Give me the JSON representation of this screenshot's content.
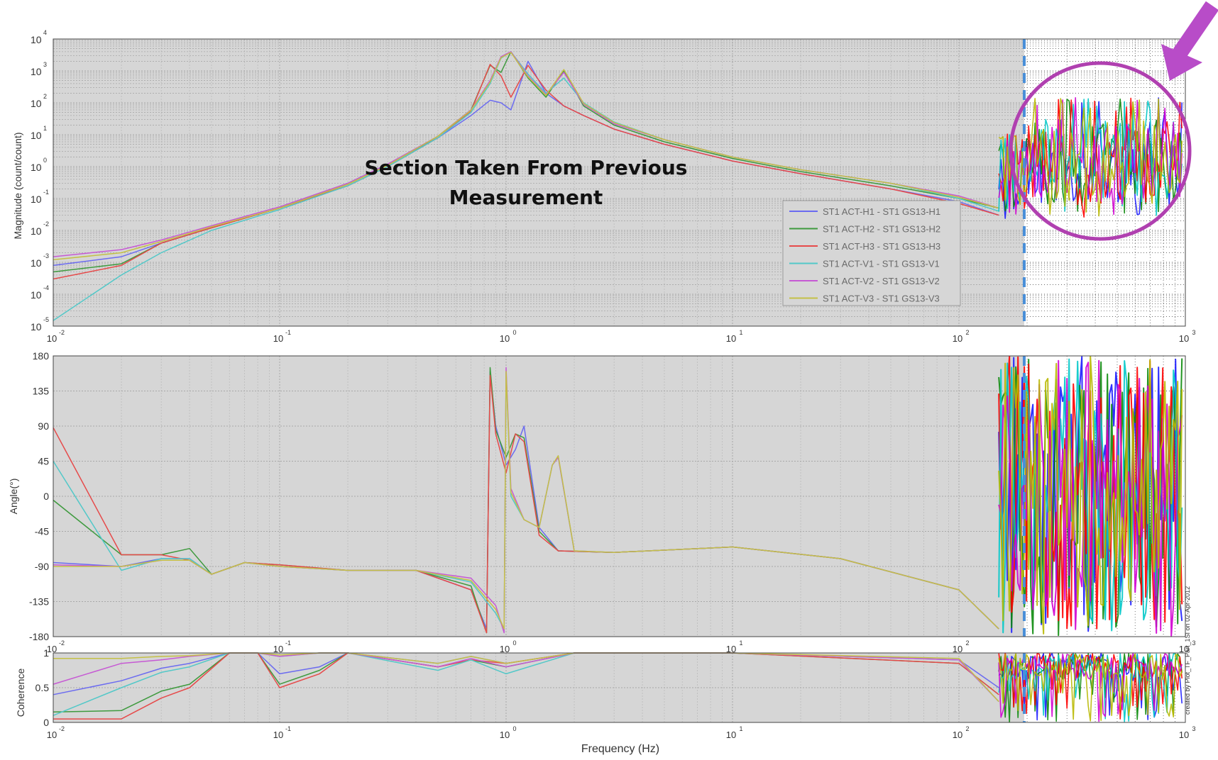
{
  "annotation": {
    "line1": "Section Taken From Previous",
    "line2": "Measurement"
  },
  "watermark": "created by Plot_TF_Part_1SI on 02-Apr-2012",
  "legend": [
    "ST1 ACT-H1 - ST1 GS13-H1",
    "ST1 ACT-H2 - ST1 GS13-H2",
    "ST1 ACT-H3 - ST1 GS13-H3",
    "ST1 ACT-V1 - ST1 GS13-V1",
    "ST1 ACT-V2 - ST1 GS13-V2",
    "ST1 ACT-V3 - ST1 GS13-V3"
  ],
  "colors": {
    "series": [
      "#6b6bf0",
      "#3e9a3e",
      "#e64a4a",
      "#52c8c8",
      "#c65ad4",
      "#c4c046"
    ],
    "series_bright": [
      "#1a1aff",
      "#0a8a0a",
      "#ff0000",
      "#00c8c8",
      "#d000d0",
      "#b8b800"
    ],
    "shaded_bg": "#d6d6d6",
    "highlight_circle": "#b040b0",
    "arrow": "#b84cc8",
    "divider": "#4a8fd8"
  },
  "chart_data": [
    {
      "type": "line",
      "panel": "magnitude",
      "ylabel": "Magnitude (count/count)",
      "xscale": "log",
      "yscale": "log",
      "xlim": [
        0.01,
        1000
      ],
      "ylim": [
        1e-05,
        10000
      ],
      "y_ticks": [
        "10^-5",
        "10^-4",
        "10^-3",
        "10^-2",
        "10^-1",
        "10^0",
        "10^1",
        "10^2",
        "10^3",
        "10^4"
      ],
      "x_ticks": [
        "10^-2",
        "10^-1",
        "10^0",
        "10^1",
        "10^2",
        "10^3"
      ],
      "grid": true,
      "legend_position": "bottom-right",
      "series": [
        {
          "name": "ST1 ACT-H1 - ST1 GS13-H1",
          "x": [
            0.01,
            0.02,
            0.03,
            0.05,
            0.1,
            0.2,
            0.3,
            0.5,
            0.7,
            0.85,
            0.95,
            1.05,
            1.25,
            1.5,
            1.8,
            2.2,
            3,
            5,
            10,
            20,
            50,
            100,
            150
          ],
          "y": [
            0.0008,
            0.0015,
            0.004,
            0.012,
            0.05,
            0.3,
            1.2,
            8,
            40,
            120,
            100,
            60,
            2000,
            200,
            80,
            40,
            15,
            5,
            1.5,
            0.6,
            0.2,
            0.08,
            0.03
          ]
        },
        {
          "name": "ST1 ACT-H2 - ST1 GS13-H2",
          "x": [
            0.01,
            0.02,
            0.03,
            0.05,
            0.1,
            0.2,
            0.3,
            0.5,
            0.7,
            0.85,
            0.95,
            1.05,
            1.25,
            1.5,
            1.8,
            2.2,
            3,
            5,
            10,
            20,
            50,
            100,
            150
          ],
          "y": [
            0.0005,
            0.0009,
            0.004,
            0.012,
            0.05,
            0.28,
            1.1,
            9,
            60,
            1500,
            900,
            4000,
            600,
            150,
            1000,
            80,
            20,
            6,
            1.8,
            0.7,
            0.25,
            0.1,
            0.05
          ]
        },
        {
          "name": "ST1 ACT-H3 - ST1 GS13-H3",
          "x": [
            0.01,
            0.02,
            0.03,
            0.05,
            0.1,
            0.2,
            0.3,
            0.5,
            0.7,
            0.85,
            0.95,
            1.05,
            1.25,
            1.5,
            1.8,
            2.2,
            3,
            5,
            10,
            20,
            50,
            100,
            150
          ],
          "y": [
            0.0003,
            0.0008,
            0.004,
            0.012,
            0.05,
            0.25,
            1.0,
            8,
            55,
            1600,
            700,
            150,
            1500,
            250,
            80,
            40,
            15,
            5,
            1.5,
            0.6,
            0.2,
            0.07,
            0.03
          ]
        },
        {
          "name": "ST1 ACT-V1 - ST1 GS13-V1",
          "x": [
            0.01,
            0.02,
            0.03,
            0.05,
            0.1,
            0.2,
            0.3,
            0.5,
            0.7,
            0.85,
            0.95,
            1.05,
            1.25,
            1.5,
            1.8,
            2.2,
            3,
            5,
            10,
            20,
            50,
            100,
            150
          ],
          "y": [
            1.5e-05,
            0.0004,
            0.002,
            0.01,
            0.045,
            0.25,
            1.0,
            8,
            50,
            400,
            2500,
            4000,
            800,
            200,
            600,
            100,
            25,
            7,
            2,
            0.8,
            0.3,
            0.1,
            0.04
          ]
        },
        {
          "name": "ST1 ACT-V2 - ST1 GS13-V2",
          "x": [
            0.01,
            0.02,
            0.03,
            0.05,
            0.1,
            0.2,
            0.3,
            0.5,
            0.7,
            0.85,
            0.95,
            1.05,
            1.25,
            1.5,
            1.8,
            2.2,
            3,
            5,
            10,
            20,
            50,
            100,
            150
          ],
          "y": [
            0.0015,
            0.0025,
            0.005,
            0.014,
            0.055,
            0.3,
            1.2,
            9,
            60,
            500,
            2800,
            4000,
            700,
            180,
            900,
            90,
            22,
            7,
            2,
            0.8,
            0.3,
            0.12,
            0.05
          ]
        },
        {
          "name": "ST1 ACT-V3 - ST1 GS13-V3",
          "x": [
            0.01,
            0.02,
            0.03,
            0.05,
            0.1,
            0.2,
            0.3,
            0.5,
            0.7,
            0.85,
            0.95,
            1.05,
            1.25,
            1.5,
            1.8,
            2.2,
            3,
            5,
            10,
            20,
            50,
            100,
            150
          ],
          "y": [
            0.0012,
            0.002,
            0.0045,
            0.013,
            0.05,
            0.28,
            1.1,
            9,
            58,
            450,
            2600,
            3800,
            650,
            170,
            1100,
            95,
            24,
            7,
            2,
            0.8,
            0.3,
            0.11,
            0.05
          ]
        }
      ]
    },
    {
      "type": "line",
      "panel": "phase",
      "ylabel": "Angle(°)",
      "xscale": "log",
      "xlim": [
        0.01,
        1000
      ],
      "ylim": [
        -180,
        180
      ],
      "y_ticks": [
        180,
        135,
        90,
        45,
        0,
        -45,
        -90,
        -135,
        -180
      ],
      "x_ticks": [
        "10^-2",
        "10^-1",
        "10^0",
        "10^1",
        "10^2",
        "10^3"
      ],
      "grid": true,
      "series": [
        {
          "name": "ST1 ACT-H1 - ST1 GS13-H1",
          "x": [
            0.01,
            0.02,
            0.03,
            0.04,
            0.05,
            0.07,
            0.1,
            0.2,
            0.4,
            0.7,
            0.82,
            0.85,
            0.9,
            1.0,
            1.1,
            1.2,
            1.4,
            1.7,
            3,
            10,
            30,
            100,
            150
          ],
          "y": [
            -85,
            -90,
            -80,
            -80,
            -100,
            -85,
            -90,
            -95,
            -95,
            -120,
            -170,
            160,
            90,
            40,
            60,
            90,
            -40,
            -70,
            -72,
            -65,
            -80,
            -120,
            -170
          ]
        },
        {
          "name": "ST1 ACT-H2 - ST1 GS13-H2",
          "x": [
            0.01,
            0.02,
            0.03,
            0.04,
            0.05,
            0.07,
            0.1,
            0.2,
            0.4,
            0.7,
            0.82,
            0.85,
            0.9,
            1.0,
            1.1,
            1.2,
            1.4,
            1.7,
            3,
            10,
            30,
            100,
            150
          ],
          "y": [
            -5,
            -75,
            -75,
            -67,
            -100,
            -85,
            -88,
            -95,
            -95,
            -115,
            -175,
            165,
            85,
            50,
            80,
            75,
            -45,
            -70,
            -72,
            -65,
            -80,
            -120,
            -170
          ]
        },
        {
          "name": "ST1 ACT-H3 - ST1 GS13-H3",
          "x": [
            0.01,
            0.02,
            0.03,
            0.04,
            0.05,
            0.07,
            0.1,
            0.2,
            0.4,
            0.7,
            0.82,
            0.85,
            0.9,
            1.0,
            1.1,
            1.2,
            1.4,
            1.7,
            3,
            10,
            30,
            100,
            150
          ],
          "y": [
            88,
            -75,
            -75,
            -82,
            -100,
            -85,
            -88,
            -95,
            -95,
            -120,
            -175,
            155,
            80,
            30,
            80,
            70,
            -50,
            -70,
            -72,
            -65,
            -80,
            -120,
            -170
          ]
        },
        {
          "name": "ST1 ACT-V1 - ST1 GS13-V1",
          "x": [
            0.01,
            0.02,
            0.03,
            0.04,
            0.05,
            0.07,
            0.1,
            0.2,
            0.4,
            0.7,
            0.9,
            0.98,
            1.0,
            1.05,
            1.2,
            1.4,
            1.6,
            1.7,
            2,
            3,
            10,
            30,
            100,
            150
          ],
          "y": [
            45,
            -95,
            -80,
            -80,
            -100,
            -85,
            -90,
            -95,
            -95,
            -110,
            -150,
            -170,
            160,
            0,
            -30,
            -40,
            40,
            50,
            -70,
            -72,
            -65,
            -80,
            -120,
            -170
          ]
        },
        {
          "name": "ST1 ACT-V2 - ST1 GS13-V2",
          "x": [
            0.01,
            0.02,
            0.03,
            0.04,
            0.05,
            0.07,
            0.1,
            0.2,
            0.4,
            0.7,
            0.9,
            0.98,
            1.0,
            1.05,
            1.2,
            1.4,
            1.6,
            1.7,
            2,
            3,
            10,
            30,
            100,
            150
          ],
          "y": [
            -88,
            -90,
            -82,
            -82,
            -100,
            -85,
            -90,
            -95,
            -95,
            -105,
            -140,
            -175,
            165,
            10,
            -30,
            -40,
            40,
            50,
            -70,
            -72,
            -65,
            -80,
            -120,
            -170
          ]
        },
        {
          "name": "ST1 ACT-V3 - ST1 GS13-V3",
          "x": [
            0.01,
            0.02,
            0.03,
            0.04,
            0.05,
            0.07,
            0.1,
            0.2,
            0.4,
            0.7,
            0.9,
            0.98,
            1.0,
            1.05,
            1.2,
            1.4,
            1.6,
            1.7,
            2,
            3,
            10,
            30,
            100,
            150
          ],
          "y": [
            -90,
            -90,
            -82,
            -82,
            -100,
            -85,
            -90,
            -95,
            -95,
            -108,
            -145,
            -170,
            160,
            5,
            -30,
            -40,
            40,
            52,
            -70,
            -72,
            -65,
            -80,
            -120,
            -170
          ]
        }
      ]
    },
    {
      "type": "line",
      "panel": "coherence",
      "ylabel": "Coherence",
      "xlabel": "Frequency (Hz)",
      "xscale": "log",
      "xlim": [
        0.01,
        1000
      ],
      "ylim": [
        0,
        1
      ],
      "y_ticks": [
        1,
        0.5,
        0
      ],
      "x_ticks": [
        "10^-2",
        "10^-1",
        "10^0",
        "10^1",
        "10^2",
        "10^3"
      ],
      "grid": true,
      "series": [
        {
          "name": "ST1 ACT-H1 - ST1 GS13-H1",
          "x": [
            0.01,
            0.02,
            0.03,
            0.04,
            0.06,
            0.08,
            0.1,
            0.15,
            0.2,
            0.5,
            0.7,
            1,
            2,
            10,
            100,
            150
          ],
          "y": [
            0.4,
            0.6,
            0.78,
            0.85,
            1,
            1,
            0.7,
            0.8,
            1,
            0.85,
            0.95,
            0.85,
            1,
            1,
            0.9,
            0.5
          ]
        },
        {
          "name": "ST1 ACT-H2 - ST1 GS13-H2",
          "x": [
            0.01,
            0.02,
            0.03,
            0.04,
            0.06,
            0.08,
            0.1,
            0.15,
            0.2,
            0.5,
            0.7,
            1,
            2,
            10,
            100,
            150
          ],
          "y": [
            0.15,
            0.17,
            0.45,
            0.55,
            1,
            1,
            0.55,
            0.75,
            1,
            0.8,
            0.9,
            0.8,
            1,
            1,
            0.85,
            0.4
          ]
        },
        {
          "name": "ST1 ACT-H3 - ST1 GS13-H3",
          "x": [
            0.01,
            0.02,
            0.03,
            0.04,
            0.06,
            0.08,
            0.1,
            0.15,
            0.2,
            0.5,
            0.7,
            1,
            2,
            10,
            100,
            150
          ],
          "y": [
            0.05,
            0.05,
            0.35,
            0.5,
            1,
            1,
            0.5,
            0.7,
            1,
            0.8,
            0.9,
            0.85,
            1,
            1,
            0.85,
            0.4
          ]
        },
        {
          "name": "ST1 ACT-V1 - ST1 GS13-V1",
          "x": [
            0.01,
            0.02,
            0.03,
            0.04,
            0.06,
            0.08,
            0.1,
            0.15,
            0.2,
            0.5,
            0.7,
            1,
            2,
            10,
            100,
            150
          ],
          "y": [
            0.1,
            0.5,
            0.72,
            0.8,
            1,
            1,
            0.95,
            1,
            1,
            0.75,
            0.9,
            0.7,
            1,
            1,
            0.9,
            0.3
          ]
        },
        {
          "name": "ST1 ACT-V2 - ST1 GS13-V2",
          "x": [
            0.01,
            0.02,
            0.03,
            0.04,
            0.06,
            0.08,
            0.1,
            0.15,
            0.2,
            0.5,
            0.7,
            1,
            2,
            10,
            100,
            150
          ],
          "y": [
            0.55,
            0.85,
            0.9,
            0.95,
            1,
            1,
            0.95,
            1,
            1,
            0.8,
            0.92,
            0.8,
            1,
            1,
            0.9,
            0.3
          ]
        },
        {
          "name": "ST1 ACT-V3 - ST1 GS13-V3",
          "x": [
            0.01,
            0.02,
            0.03,
            0.04,
            0.06,
            0.08,
            0.1,
            0.15,
            0.2,
            0.5,
            0.7,
            1,
            2,
            10,
            100,
            150
          ],
          "y": [
            0.92,
            0.92,
            0.95,
            0.96,
            1,
            1,
            0.97,
            1,
            1,
            0.85,
            0.95,
            0.85,
            1,
            1,
            0.92,
            0.3
          ]
        }
      ]
    }
  ]
}
